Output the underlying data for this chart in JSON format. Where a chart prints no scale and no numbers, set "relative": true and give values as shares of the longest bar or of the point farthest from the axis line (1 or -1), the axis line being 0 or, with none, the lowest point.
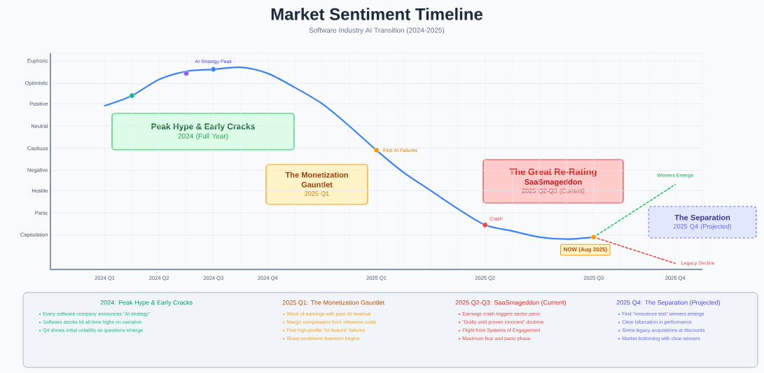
{
  "chart_data": {
    "type": "line",
    "title": "Market Sentiment Timeline",
    "subtitle": "Software Industry AI Transition (2024-2025)",
    "relative": true,
    "categories": [
      "2024 Q1",
      null,
      "2024 Q2",
      null,
      "2024 Q3",
      null,
      "2024 Q4",
      null,
      null,
      null,
      "2025 Q1",
      null,
      null,
      null,
      "2025 Q2",
      null,
      null,
      null,
      "2025 Q3",
      null,
      null,
      "2025 Q4"
    ],
    "grid": "x",
    "ref_lines": [
      {
        "axis": "y",
        "value": 0.17,
        "label": "Capitulation"
      },
      {
        "axis": "y",
        "value": 0.28,
        "label": "Panic"
      },
      {
        "axis": "y",
        "value": 0.39,
        "label": "Hostile"
      },
      {
        "axis": "y",
        "value": 0.49,
        "label": "Negative"
      },
      {
        "axis": "y",
        "value": 0.6,
        "label": "Cautious"
      },
      {
        "axis": "y",
        "value": 0.71,
        "label": "Neutral"
      },
      {
        "axis": "y",
        "value": 0.82,
        "label": "Positive"
      },
      {
        "axis": "y",
        "value": 0.92,
        "label": "Optimistic"
      },
      {
        "axis": "y",
        "value": 1.03,
        "label": "Euphoric"
      }
    ],
    "series": [
      {
        "color": "#3b82f6",
        "line_style": "solid",
        "values": [
          0.81,
          0.86,
          0.94,
          0.98,
          0.99,
          1,
          0.97,
          0.9,
          0.82,
          0.71,
          0.59,
          0.48,
          0.39,
          0.3,
          0.22,
          0.19,
          0.16,
          0.15,
          0.16,
          null,
          null,
          null
        ]
      },
      {
        "type": "line",
        "color": "#22c55e",
        "line_style": "dashed",
        "values": [
          null,
          null,
          null,
          null,
          null,
          null,
          null,
          null,
          null,
          null,
          null,
          null,
          null,
          null,
          null,
          null,
          null,
          null,
          0.16,
          null,
          null,
          0.42
        ]
      },
      {
        "type": "line",
        "color": "#ef4444",
        "line_style": "dashed",
        "values": [
          null,
          null,
          null,
          null,
          null,
          null,
          null,
          null,
          null,
          null,
          null,
          null,
          null,
          null,
          null,
          null,
          null,
          null,
          0.16,
          null,
          null,
          0.03
        ]
      },
      {
        "type": "scatter",
        "marker": "circle",
        "values": [
          null,
          0.86,
          null,
          0.97,
          0.99,
          null,
          null,
          null,
          null,
          null,
          0.59,
          null,
          null,
          null,
          0.22,
          null,
          null,
          null,
          0.16,
          null,
          null,
          null
        ],
        "colors": [
          null,
          "#10b981",
          null,
          "#8b5cf6",
          "#3b82f6",
          null,
          null,
          null,
          null,
          null,
          "#f59e0b",
          null,
          null,
          null,
          "#ef4444",
          null,
          null,
          null,
          "#f59e0b",
          null,
          null,
          null
        ]
      }
    ],
    "annotations": [
      {
        "text": "AI Strategy Peak",
        "x": "2024 Q3",
        "y": 0.99
      },
      {
        "text": "First AI Failures",
        "x": "2025 Q1",
        "y": 0.59
      },
      {
        "text": "Crash",
        "x": "2025 Q2",
        "y": 0.22
      },
      {
        "text": "NOW (Aug 2025)",
        "x": "2025 Q3",
        "y": 0.16
      },
      {
        "text": "Winners Emerge",
        "x": "2025 Q4",
        "y": 0.42
      },
      {
        "text": "Legacy Decline",
        "x": "2025 Q4",
        "y": 0.03
      },
      "Peak Hype & Early Cracks",
      "2024 (Full Year)",
      "The Monetization Gauntlet",
      "2025 Q1",
      "The Great Re-Rating",
      "SaaSmageddon",
      "2025 Q2-Q3 (Current)",
      "The Separation",
      "2025 Q4 (Projected)",
      "2024: Peak Hype & Early Cracks",
      "Every software company announces \"AI strategy\"",
      "Software stocks hit all-time highs on narrative",
      "Q4 shows initial volatility as questions emerge",
      "2025 Q1: The Monetization Gauntlet",
      "Wave of earnings with poor AI revenue",
      "Margin compression from inference costs",
      "First high-profile \"AI feature\" failures",
      "Sharp sentiment downturn begins",
      "2025 Q2-Q3: SaaSmageddon (Current)",
      "Earnings crash triggers sector panic",
      "\"Guilty until proven innocent\" doctrine",
      "Flight from Systems of Engagement",
      "Maximum fear and panic phase",
      "2025 Q4: The Separation (Projected)",
      "First \"innocence test\" winners emerge",
      "Clear bifurcation in performance",
      "Some legacy acquisitions at discounts",
      "Market bottoming with clear winners"
    ]
  }
}
